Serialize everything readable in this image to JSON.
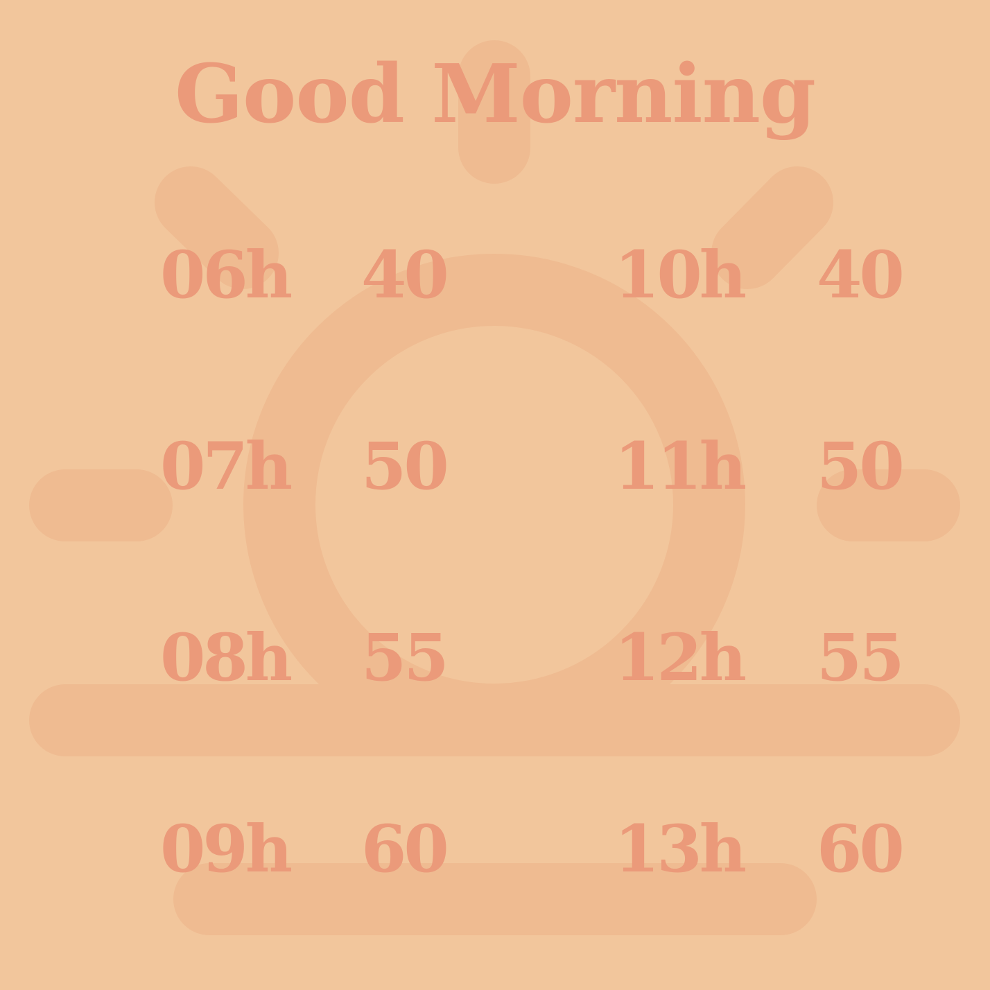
{
  "colors": {
    "background": "#F2C69C",
    "sun_shape": "#EFBB91",
    "text": "#EB9A7A"
  },
  "background_icon": "sunrise-icon",
  "title": "Good Morning",
  "rows": [
    {
      "left_hour": "06h",
      "left_value": "40",
      "right_hour": "10h",
      "right_value": "40"
    },
    {
      "left_hour": "07h",
      "left_value": "50",
      "right_hour": "11h",
      "right_value": "50"
    },
    {
      "left_hour": "08h",
      "left_value": "55",
      "right_hour": "12h",
      "right_value": "55"
    },
    {
      "left_hour": "09h",
      "left_value": "60",
      "right_hour": "13h",
      "right_value": "60"
    }
  ]
}
